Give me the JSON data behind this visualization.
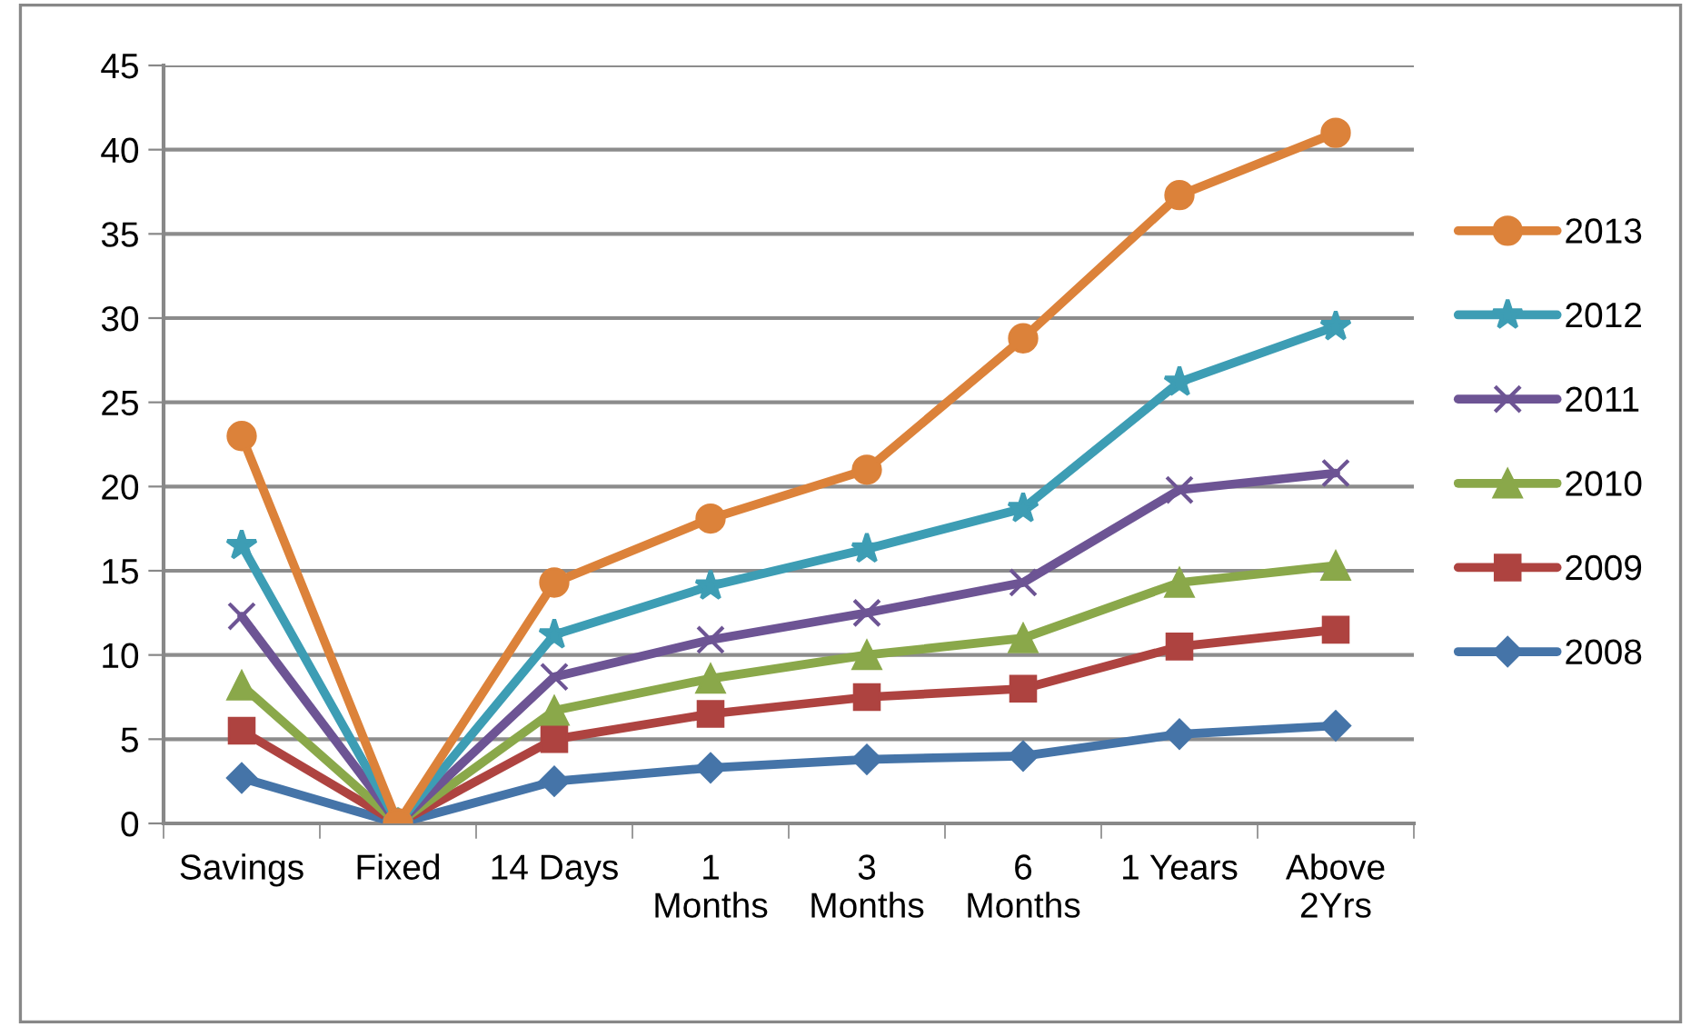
{
  "chart_data": {
    "type": "line",
    "categories": [
      "Savings",
      "Fixed",
      "14 Days",
      "1\nMonths",
      "3\nMonths",
      "6\nMonths",
      "1 Years",
      "Above\n2Yrs"
    ],
    "series": [
      {
        "name": "2013",
        "color": "#dc823a",
        "marker": "circle",
        "values": [
          23,
          0,
          14.3,
          18.1,
          21,
          28.8,
          37.3,
          41
        ]
      },
      {
        "name": "2012",
        "color": "#3d9db4",
        "marker": "star",
        "values": [
          16.5,
          0,
          11.2,
          14.1,
          16.3,
          18.7,
          26.2,
          29.5
        ]
      },
      {
        "name": "2011",
        "color": "#6d5494",
        "marker": "cross",
        "values": [
          12.3,
          0,
          8.7,
          10.9,
          12.5,
          14.3,
          19.8,
          20.8
        ]
      },
      {
        "name": "2010",
        "color": "#8aa84a",
        "marker": "triangle",
        "values": [
          8.2,
          0,
          6.7,
          8.6,
          10,
          11,
          14.3,
          15.3
        ]
      },
      {
        "name": "2009",
        "color": "#ae4340",
        "marker": "square",
        "values": [
          5.5,
          0,
          5,
          6.5,
          7.5,
          8,
          10.5,
          11.5
        ]
      },
      {
        "name": "2008",
        "color": "#4574a8",
        "marker": "diamond",
        "values": [
          2.7,
          0,
          2.5,
          3.3,
          3.8,
          4,
          5.3,
          5.8
        ]
      }
    ],
    "ylim": [
      0,
      45
    ],
    "yticks": [
      0,
      5,
      10,
      15,
      20,
      25,
      30,
      35,
      40,
      45
    ],
    "grid": "y",
    "legend": "right"
  }
}
